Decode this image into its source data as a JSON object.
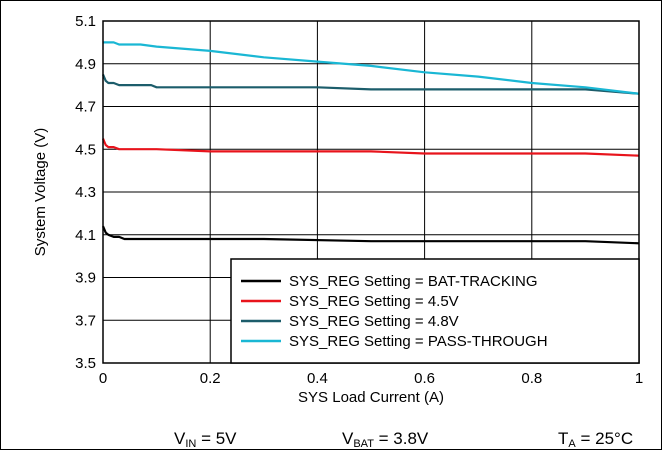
{
  "chart_data": {
    "type": "line",
    "xlabel": "SYS Load Current (A)",
    "ylabel": "System Voltage (V)",
    "xlim": [
      0,
      1
    ],
    "ylim": [
      3.5,
      5.1
    ],
    "xticks": [
      "0",
      "0.2",
      "0.4",
      "0.6",
      "0.8",
      "1"
    ],
    "yticks": [
      "3.5",
      "3.7",
      "3.9",
      "4.1",
      "4.3",
      "4.5",
      "4.7",
      "4.9",
      "5.1"
    ],
    "grid": true,
    "legend_position": "bottom-right",
    "series": [
      {
        "name": "SYS_REG Setting = BAT-TRACKING",
        "color": "#000000",
        "x": [
          0,
          0.005,
          0.01,
          0.02,
          0.03,
          0.04,
          0.1,
          0.3,
          0.5,
          0.7,
          0.9,
          1.0
        ],
        "y": [
          4.14,
          4.11,
          4.1,
          4.09,
          4.09,
          4.08,
          4.08,
          4.08,
          4.07,
          4.07,
          4.07,
          4.06
        ]
      },
      {
        "name": "SYS_REG Setting = 4.5V",
        "color": "#e8141c",
        "x": [
          0,
          0.005,
          0.01,
          0.02,
          0.03,
          0.1,
          0.2,
          0.5,
          0.6,
          0.9,
          1.0
        ],
        "y": [
          4.55,
          4.52,
          4.51,
          4.51,
          4.5,
          4.5,
          4.49,
          4.49,
          4.48,
          4.48,
          4.47
        ]
      },
      {
        "name": "SYS_REG Setting = 4.8V",
        "color": "#1c5d6b",
        "x": [
          0,
          0.005,
          0.01,
          0.02,
          0.03,
          0.09,
          0.1,
          0.3,
          0.4,
          0.5,
          0.9,
          1.0
        ],
        "y": [
          4.85,
          4.82,
          4.81,
          4.81,
          4.8,
          4.8,
          4.79,
          4.79,
          4.79,
          4.78,
          4.78,
          4.76
        ]
      },
      {
        "name": "SYS_REG Setting = PASS-THROUGH",
        "color": "#1ab7d4",
        "x": [
          0,
          0.005,
          0.02,
          0.03,
          0.07,
          0.1,
          0.2,
          0.3,
          0.4,
          0.5,
          0.6,
          0.7,
          0.8,
          0.9,
          1.0
        ],
        "y": [
          5.0,
          5.0,
          5.0,
          4.99,
          4.99,
          4.98,
          4.96,
          4.93,
          4.91,
          4.89,
          4.86,
          4.84,
          4.81,
          4.79,
          4.76
        ]
      }
    ]
  },
  "conditions": {
    "vin_var": "V",
    "vin_sub": "IN",
    "vin_val": " = 5V",
    "vbat_var": "V",
    "vbat_sub": "BAT",
    "vbat_val": " = 3.8V",
    "ta_var": "T",
    "ta_sub": "A",
    "ta_val": " = 25°C"
  }
}
